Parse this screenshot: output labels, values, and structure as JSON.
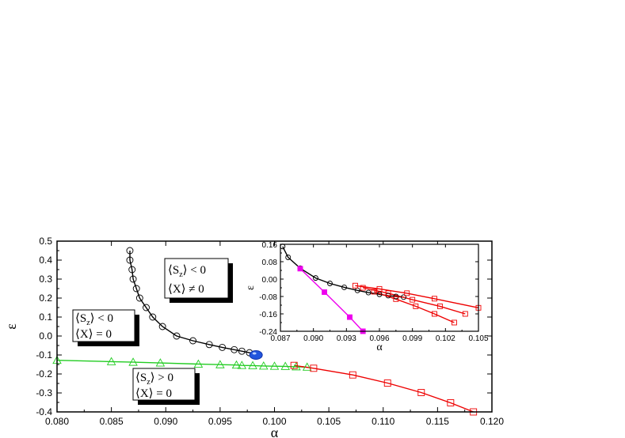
{
  "chart_data": [
    {
      "type": "line",
      "xlabel": "α",
      "ylabel": "ε",
      "xlim": [
        0.08,
        0.12
      ],
      "ylim": [
        -0.4,
        0.5
      ],
      "xticks": [
        "0.080",
        "0.085",
        "0.090",
        "0.095",
        "0.100",
        "0.105",
        "0.110",
        "0.115",
        "0.120"
      ],
      "yticks": [
        "0.5",
        "0.4",
        "0.3",
        "0.2",
        "0.1",
        "0.0",
        "-0.1",
        "-0.2",
        "-0.3",
        "-0.4"
      ],
      "regions": [
        {
          "line1": "⟨S_z⟩ < 0",
          "line2": "⟨X⟩ ≠ 0"
        },
        {
          "line1": "⟨S_z⟩ < 0",
          "line2": "⟨X⟩ = 0"
        },
        {
          "line1": "⟨S_z⟩ > 0",
          "line2": "⟨X⟩ = 0"
        }
      ],
      "series": [
        {
          "marker": "circle",
          "color": "#000000",
          "x": [
            0.0867,
            0.0867,
            0.0869,
            0.087,
            0.0873,
            0.0876,
            0.0882,
            0.0888,
            0.0897,
            0.091,
            0.0925,
            0.094,
            0.0952,
            0.0963,
            0.097,
            0.0977,
            0.0983
          ],
          "y": [
            0.45,
            0.4,
            0.35,
            0.3,
            0.25,
            0.2,
            0.15,
            0.1,
            0.05,
            0.0,
            -0.025,
            -0.045,
            -0.06,
            -0.072,
            -0.08,
            -0.088,
            -0.095
          ]
        },
        {
          "marker": "triangle",
          "color": "#22cc22",
          "x": [
            0.08,
            0.085,
            0.087,
            0.0895,
            0.093,
            0.095,
            0.0965,
            0.097,
            0.098,
            0.099,
            0.1,
            0.101,
            0.102,
            0.103
          ],
          "y": [
            -0.128,
            -0.135,
            -0.138,
            -0.142,
            -0.148,
            -0.151,
            -0.153,
            -0.155,
            -0.156,
            -0.158,
            -0.159,
            -0.16,
            -0.162,
            -0.164
          ]
        },
        {
          "marker": "square",
          "color": "#ee0000",
          "x": [
            0.1018,
            0.1036,
            0.1072,
            0.1104,
            0.1135,
            0.1162,
            0.1183
          ],
          "y": [
            -0.155,
            -0.17,
            -0.205,
            -0.248,
            -0.298,
            -0.352,
            -0.4
          ]
        }
      ],
      "critical_point": {
        "x": 0.0983,
        "y": -0.1,
        "color": "#2255dd"
      }
    },
    {
      "type": "line",
      "xlabel": "α",
      "ylabel": "ε",
      "xlim": [
        0.087,
        0.105
      ],
      "ylim": [
        -0.24,
        0.16
      ],
      "xticks": [
        "0.087",
        "0.090",
        "0.093",
        "0.096",
        "0.099",
        "0.102",
        "0.105"
      ],
      "yticks": [
        "0.16",
        "0.08",
        "0.00",
        "-0.08",
        "-0.16",
        "-0.24"
      ],
      "series": [
        {
          "marker": "circle",
          "color": "#000000",
          "x": [
            0.0872,
            0.0877,
            0.0888,
            0.0902,
            0.0915,
            0.0928,
            0.094,
            0.095,
            0.096,
            0.0968,
            0.0975,
            0.0982
          ],
          "y": [
            0.15,
            0.1,
            0.05,
            0.005,
            -0.02,
            -0.038,
            -0.052,
            -0.062,
            -0.07,
            -0.076,
            -0.08,
            -0.083
          ]
        },
        {
          "marker": "square",
          "color": "#ee0000",
          "x": [
            0.0938,
            0.096,
            0.0985,
            0.101,
            0.105
          ],
          "y": [
            -0.03,
            -0.045,
            -0.065,
            -0.09,
            -0.132
          ]
        },
        {
          "marker": "square",
          "color": "#ee0000",
          "x": [
            0.0945,
            0.0968,
            0.099,
            0.1015,
            0.1038
          ],
          "y": [
            -0.04,
            -0.065,
            -0.095,
            -0.125,
            -0.16
          ]
        },
        {
          "marker": "square",
          "color": "#ee0000",
          "x": [
            0.0955,
            0.0975,
            0.0993,
            0.101,
            0.1028
          ],
          "y": [
            -0.058,
            -0.092,
            -0.125,
            -0.16,
            -0.2
          ]
        },
        {
          "marker": "filled-square",
          "color": "#ee00ee",
          "x": [
            0.0888,
            0.091,
            0.0933,
            0.0945
          ],
          "y": [
            0.048,
            -0.06,
            -0.175,
            -0.24
          ]
        }
      ]
    }
  ]
}
